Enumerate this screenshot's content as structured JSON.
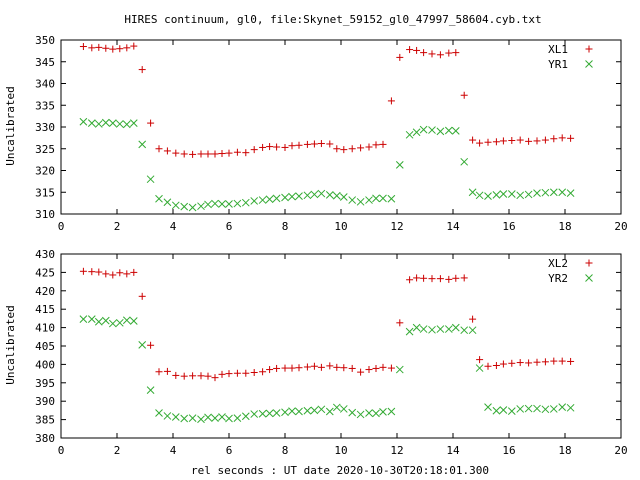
{
  "chart_data": [
    {
      "type": "scatter",
      "title": "HIRES continuum, gl0, file:Skynet_59152_gl0_47997_58604.cyb.txt",
      "xlabel": "",
      "ylabel": "Uncalibrated",
      "xlim": [
        0,
        20
      ],
      "ylim": [
        310,
        350
      ],
      "xticks": [
        0,
        2,
        4,
        6,
        8,
        10,
        12,
        14,
        16,
        18,
        20
      ],
      "yticks": [
        310,
        315,
        320,
        325,
        330,
        335,
        340,
        345,
        350
      ],
      "grid": false,
      "legend_position": "top-right",
      "series": [
        {
          "name": "XL1",
          "marker": "plus",
          "color": "#cc0000",
          "x": [
            0.8,
            1.1,
            1.35,
            1.6,
            1.85,
            2.1,
            2.35,
            2.6,
            2.9,
            3.2,
            3.5,
            3.8,
            4.1,
            4.4,
            4.7,
            5.0,
            5.25,
            5.5,
            5.75,
            6.0,
            6.3,
            6.6,
            6.9,
            7.2,
            7.45,
            7.7,
            8.0,
            8.25,
            8.5,
            8.8,
            9.05,
            9.3,
            9.6,
            9.85,
            10.1,
            10.4,
            10.7,
            11.0,
            11.25,
            11.5,
            11.8,
            12.1,
            12.45,
            12.7,
            12.95,
            13.25,
            13.55,
            13.85,
            14.1,
            14.4,
            14.7,
            14.95,
            15.25,
            15.55,
            15.8,
            16.1,
            16.4,
            16.7,
            17.0,
            17.3,
            17.6,
            17.9,
            18.2
          ],
          "y": [
            348.5,
            348.2,
            348.3,
            348.1,
            347.9,
            348.0,
            348.2,
            348.6,
            343.2,
            330.9,
            325.0,
            324.5,
            324.0,
            323.8,
            323.7,
            323.8,
            323.8,
            323.8,
            323.9,
            324.0,
            324.2,
            324.1,
            324.8,
            325.3,
            325.5,
            325.4,
            325.3,
            325.7,
            325.8,
            326.0,
            326.1,
            326.2,
            326.1,
            325.0,
            324.8,
            325.0,
            325.2,
            325.4,
            325.9,
            326.0,
            336.0,
            346.0,
            347.8,
            347.6,
            347.1,
            346.8,
            346.6,
            347.0,
            347.1,
            337.3,
            327.0,
            326.3,
            326.5,
            326.6,
            326.8,
            326.9,
            327.0,
            326.7,
            326.8,
            327.0,
            327.3,
            327.5,
            327.4
          ],
          "y_note": ""
        },
        {
          "name": "YR1",
          "marker": "cross",
          "color": "#33aa33",
          "x": [
            0.8,
            1.1,
            1.35,
            1.6,
            1.85,
            2.1,
            2.35,
            2.6,
            2.9,
            3.2,
            3.5,
            3.8,
            4.1,
            4.4,
            4.7,
            5.0,
            5.25,
            5.5,
            5.75,
            6.0,
            6.3,
            6.6,
            6.9,
            7.2,
            7.45,
            7.7,
            8.0,
            8.25,
            8.5,
            8.8,
            9.05,
            9.3,
            9.6,
            9.85,
            10.1,
            10.4,
            10.7,
            11.0,
            11.25,
            11.5,
            11.8,
            12.1,
            12.45,
            12.7,
            12.95,
            13.25,
            13.55,
            13.85,
            14.1,
            14.4,
            14.7,
            14.95,
            15.25,
            15.55,
            15.8,
            16.1,
            16.4,
            16.7,
            17.0,
            17.3,
            17.6,
            17.9,
            18.2
          ],
          "y": [
            331.2,
            330.9,
            330.7,
            331.0,
            330.9,
            330.7,
            330.6,
            330.9,
            326.0,
            318.0,
            313.5,
            312.7,
            312.0,
            311.7,
            311.5,
            311.8,
            312.2,
            312.4,
            312.3,
            312.3,
            312.4,
            312.6,
            313.0,
            313.2,
            313.4,
            313.6,
            313.8,
            314.0,
            314.1,
            314.3,
            314.5,
            314.7,
            314.4,
            314.2,
            313.9,
            313.2,
            312.8,
            313.2,
            313.6,
            313.6,
            313.5,
            321.3,
            328.2,
            328.8,
            329.4,
            329.3,
            329.0,
            329.2,
            329.1,
            322.0,
            315.0,
            314.3,
            314.1,
            314.4,
            314.6,
            314.6,
            314.3,
            314.5,
            314.8,
            314.9,
            315.0,
            315.0,
            314.8
          ]
        }
      ]
    },
    {
      "type": "scatter",
      "title": "",
      "xlabel": "rel seconds : UT date 2020-10-30T20:18:01.300",
      "ylabel": "Uncalibrated",
      "xlim": [
        0,
        20
      ],
      "ylim": [
        380,
        430
      ],
      "xticks": [
        0,
        2,
        4,
        6,
        8,
        10,
        12,
        14,
        16,
        18,
        20
      ],
      "yticks": [
        380,
        385,
        390,
        395,
        400,
        405,
        410,
        415,
        420,
        425,
        430
      ],
      "grid": false,
      "legend_position": "top-right",
      "series": [
        {
          "name": "XL2",
          "marker": "plus",
          "color": "#cc0000",
          "x": [
            0.8,
            1.1,
            1.35,
            1.6,
            1.85,
            2.1,
            2.35,
            2.6,
            2.9,
            3.2,
            3.5,
            3.8,
            4.1,
            4.4,
            4.7,
            5.0,
            5.25,
            5.5,
            5.75,
            6.0,
            6.3,
            6.6,
            6.9,
            7.2,
            7.45,
            7.7,
            8.0,
            8.25,
            8.5,
            8.8,
            9.05,
            9.3,
            9.6,
            9.85,
            10.1,
            10.4,
            10.7,
            11.0,
            11.25,
            11.5,
            11.8,
            12.1,
            12.45,
            12.7,
            12.95,
            13.25,
            13.55,
            13.85,
            14.1,
            14.4,
            14.7,
            14.95,
            15.25,
            15.55,
            15.8,
            16.1,
            16.4,
            16.7,
            17.0,
            17.3,
            17.6,
            17.9,
            18.2
          ],
          "y": [
            425.3,
            425.2,
            425.1,
            424.6,
            424.3,
            424.9,
            424.6,
            425.0,
            418.5,
            405.2,
            398.0,
            398.1,
            397.0,
            396.8,
            396.9,
            396.9,
            396.8,
            396.4,
            397.3,
            397.5,
            397.6,
            397.6,
            397.8,
            398.0,
            398.6,
            398.9,
            399.0,
            399.0,
            399.1,
            399.3,
            399.5,
            399.2,
            399.6,
            399.2,
            399.1,
            398.9,
            397.9,
            398.6,
            398.9,
            399.2,
            399.0,
            411.3,
            423.0,
            423.5,
            423.4,
            423.3,
            423.3,
            423.1,
            423.4,
            423.5,
            412.3,
            401.3,
            399.5,
            399.7,
            400.1,
            400.3,
            400.5,
            400.4,
            400.6,
            400.7,
            400.9,
            400.9,
            400.8
          ]
        },
        {
          "name": "YR2",
          "marker": "cross",
          "color": "#33aa33",
          "x": [
            0.8,
            1.1,
            1.35,
            1.6,
            1.85,
            2.1,
            2.35,
            2.6,
            2.9,
            3.2,
            3.5,
            3.8,
            4.1,
            4.4,
            4.7,
            5.0,
            5.25,
            5.5,
            5.75,
            6.0,
            6.3,
            6.6,
            6.9,
            7.2,
            7.45,
            7.7,
            8.0,
            8.25,
            8.5,
            8.8,
            9.05,
            9.3,
            9.6,
            9.85,
            10.1,
            10.4,
            10.7,
            11.0,
            11.25,
            11.5,
            11.8,
            12.1,
            12.45,
            12.7,
            12.95,
            13.25,
            13.55,
            13.85,
            14.1,
            14.4,
            14.7,
            14.95,
            15.25,
            15.55,
            15.8,
            16.1,
            16.4,
            16.7,
            17.0,
            17.3,
            17.6,
            17.9,
            18.2
          ],
          "y": [
            412.3,
            412.3,
            411.6,
            411.9,
            411.1,
            411.3,
            412.0,
            411.8,
            405.3,
            393.0,
            386.8,
            386.0,
            385.7,
            385.3,
            385.4,
            385.1,
            385.6,
            385.4,
            385.7,
            385.3,
            385.4,
            385.9,
            386.5,
            386.6,
            386.7,
            386.8,
            387.0,
            387.3,
            387.2,
            387.4,
            387.5,
            387.8,
            387.2,
            388.3,
            387.9,
            386.9,
            386.4,
            386.8,
            386.7,
            387.1,
            387.2,
            398.6,
            408.9,
            410.0,
            409.6,
            409.4,
            409.6,
            409.6,
            410.0,
            409.3,
            409.3,
            399.0,
            388.4,
            387.4,
            387.6,
            387.3,
            387.9,
            388.0,
            388.0,
            387.8,
            387.9,
            388.4,
            388.2
          ]
        }
      ]
    }
  ]
}
